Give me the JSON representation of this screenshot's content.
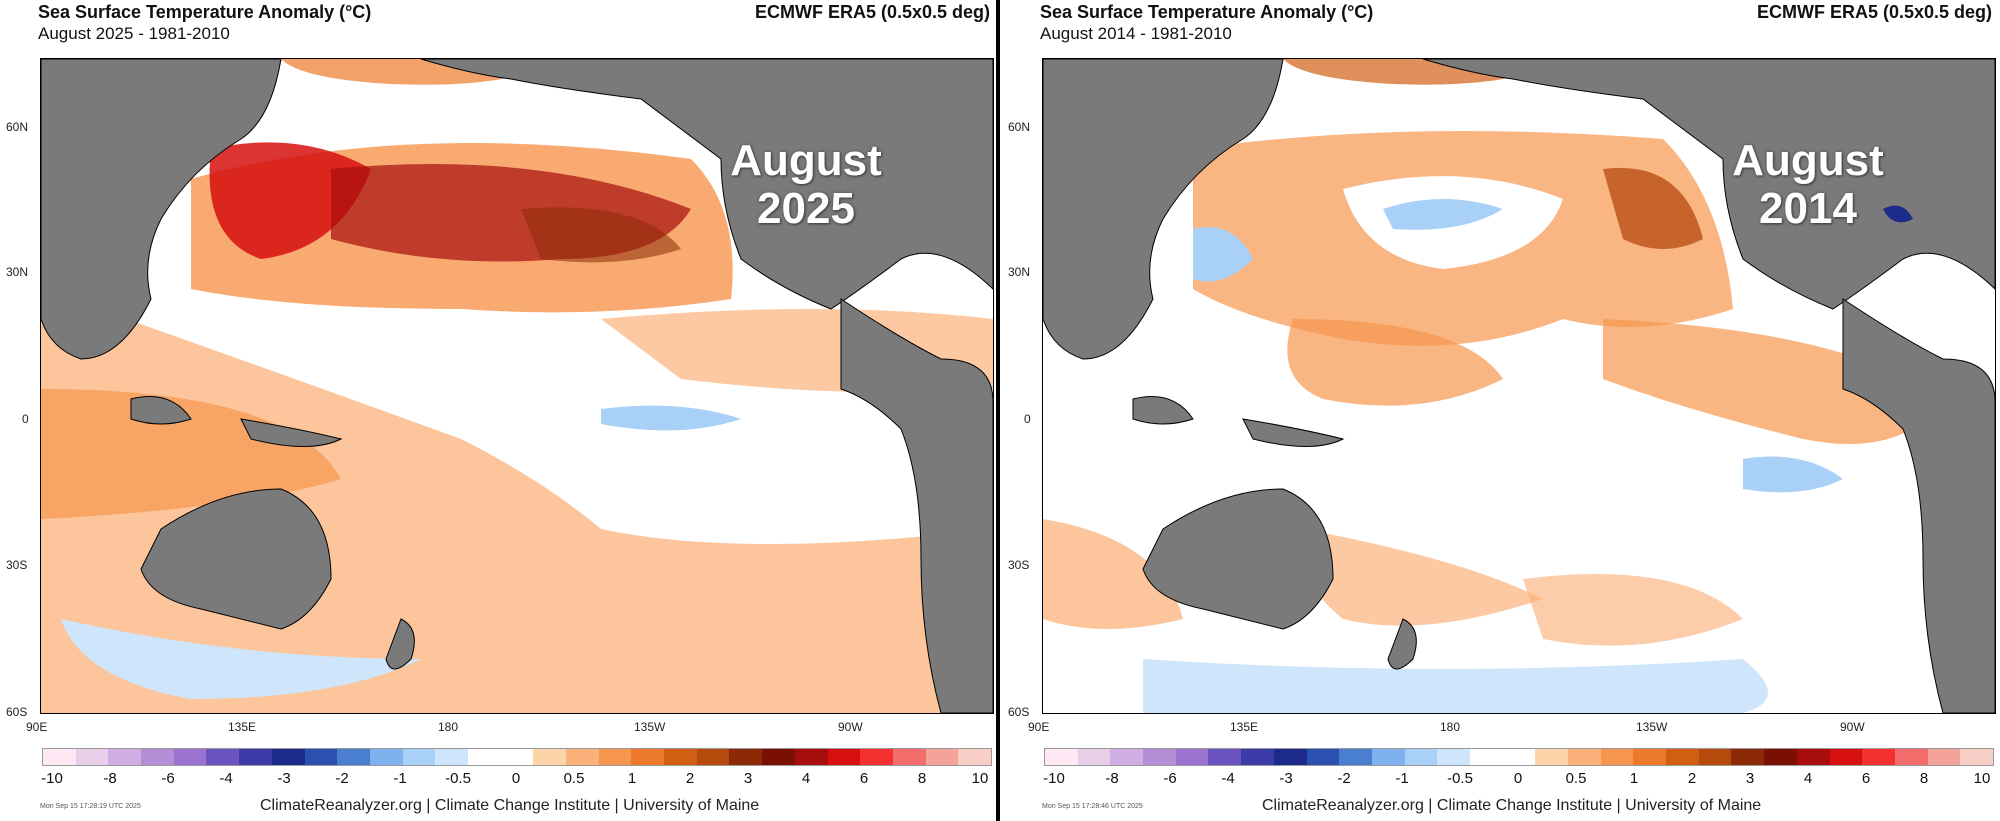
{
  "panels": [
    {
      "title": "Sea Surface Temperature Anomaly (°C)",
      "subtitle": "August 2025 - 1981-2010",
      "dataset": "ECMWF ERA5 (0.5x0.5 deg)",
      "label_line1": "August",
      "label_line2": "2025",
      "timestamp": "Mon Sep 15 17:28:19 UTC 2025"
    },
    {
      "title": "Sea Surface Temperature Anomaly (°C)",
      "subtitle": "August 2014 - 1981-2010",
      "dataset": "ECMWF ERA5 (0.5x0.5 deg)",
      "label_line1": "August",
      "label_line2": "2014",
      "timestamp": "Mon Sep 15 17:28:46 UTC 2025"
    }
  ],
  "lat_labels": [
    "60N",
    "30N",
    "0",
    "30S",
    "60S"
  ],
  "lon_labels": [
    "90E",
    "135E",
    "180",
    "135W",
    "90W"
  ],
  "colorbar": {
    "ticks": [
      "-10",
      "-8",
      "-6",
      "-4",
      "-3",
      "-2",
      "-1",
      "-0.5",
      "0",
      "0.5",
      "1",
      "2",
      "3",
      "4",
      "6",
      "8",
      "10"
    ],
    "colors": [
      "#fde8f3",
      "#e7cfe9",
      "#cfaee3",
      "#b48fd8",
      "#9a72d0",
      "#6b54bf",
      "#3a3aa8",
      "#1c2a8a",
      "#2a50b0",
      "#4a7fd0",
      "#7db2ee",
      "#a9d0f7",
      "#cfe5fb",
      "#ffffff",
      "#ffffff",
      "#fdd3a8",
      "#fbb27a",
      "#f6954d",
      "#ec7a2a",
      "#d15f13",
      "#b64a0d",
      "#8c2a07",
      "#7a1004",
      "#a80d0d",
      "#d60f0f",
      "#f53030",
      "#f46d6d",
      "#f4a39b",
      "#f8cfc6"
    ]
  },
  "footer": "ClimateReanalyzer.org | Climate Change Institute | University of Maine"
}
